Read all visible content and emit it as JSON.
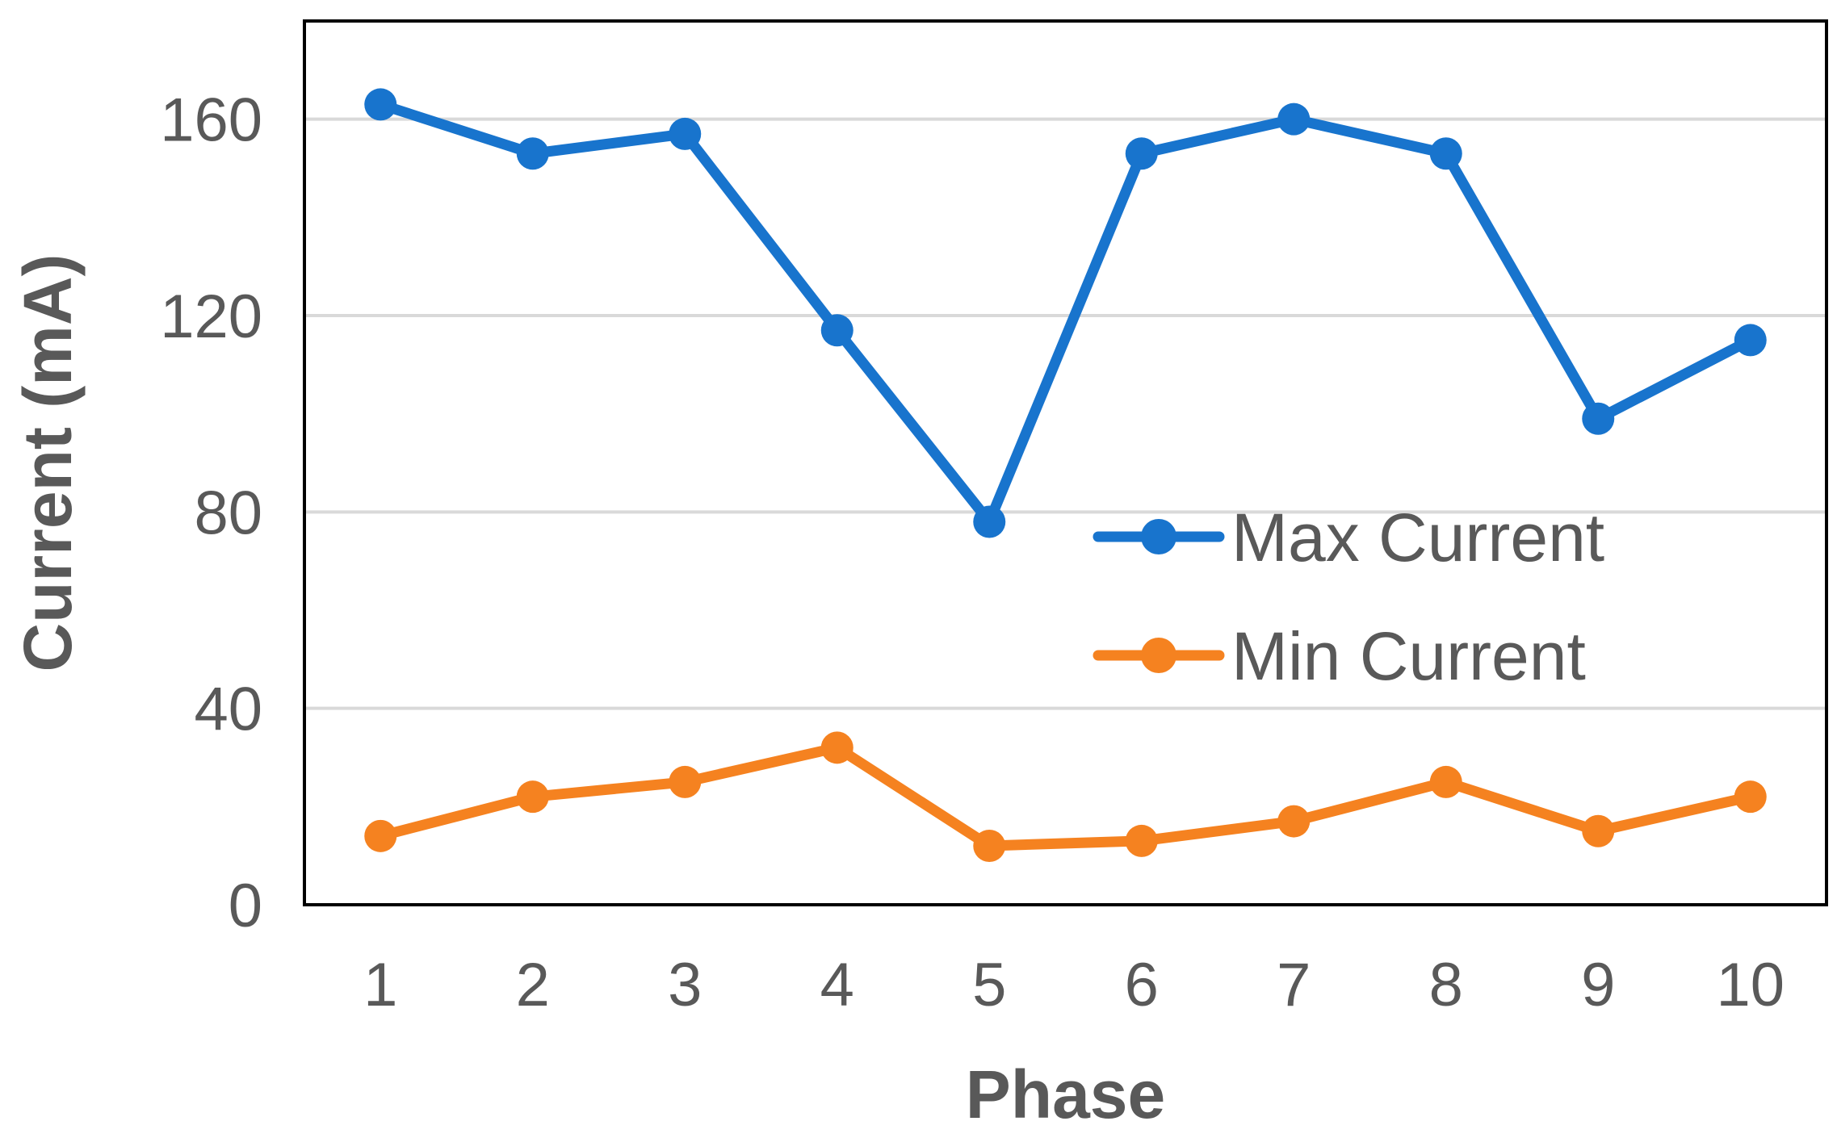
{
  "chart_data": {
    "type": "line",
    "title": "",
    "xlabel": "Phase",
    "ylabel": "Current (mA)",
    "categories": [
      "1",
      "2",
      "3",
      "4",
      "5",
      "6",
      "7",
      "8",
      "9",
      "10"
    ],
    "ylim": [
      0,
      180
    ],
    "yticks": [
      0,
      40,
      80,
      120,
      160
    ],
    "grid": true,
    "legend_position": "right",
    "series": [
      {
        "name": "Max Current",
        "color": "#1874CD",
        "values": [
          163,
          153,
          157,
          117,
          78,
          153,
          160,
          153,
          99,
          115
        ]
      },
      {
        "name": "Min Current",
        "color": "#F58220",
        "values": [
          14,
          22,
          25,
          32,
          12,
          13,
          17,
          25,
          15,
          22
        ]
      }
    ]
  }
}
